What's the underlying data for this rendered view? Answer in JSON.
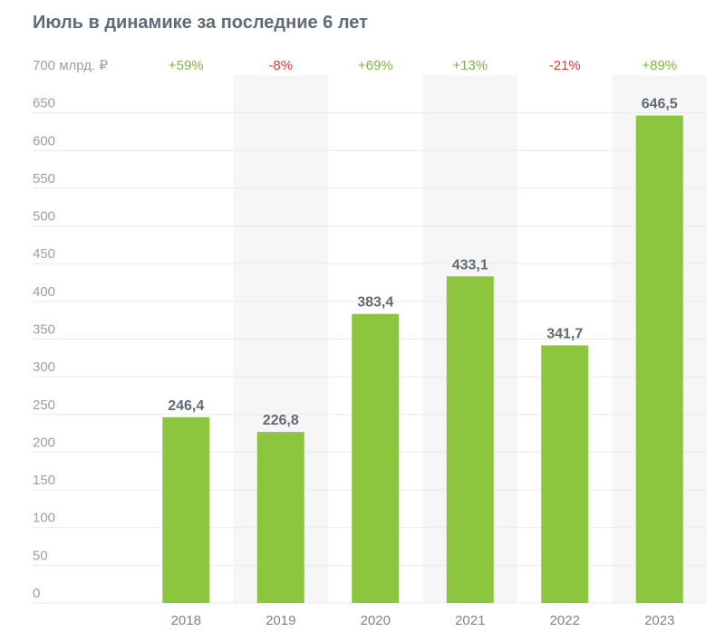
{
  "chart_data": {
    "type": "bar",
    "title": "Июль в динамике за последние 6 лет",
    "unit_label": "700 млрд. ₽",
    "categories": [
      "2018",
      "2019",
      "2020",
      "2021",
      "2022",
      "2023"
    ],
    "values": [
      246.4,
      226.8,
      383.4,
      433.1,
      341.7,
      646.5
    ],
    "value_labels": [
      "246,4",
      "226,8",
      "383,4",
      "433,1",
      "341,7",
      "646,5"
    ],
    "changes": [
      "+59%",
      "-8%",
      "+69%",
      "+13%",
      "-21%",
      "+89%"
    ],
    "yticks": [
      "0",
      "50",
      "100",
      "150",
      "200",
      "250",
      "300",
      "350",
      "400",
      "450",
      "500",
      "550",
      "600",
      "650"
    ],
    "ylim": [
      0,
      700
    ],
    "grid": true,
    "colors": {
      "bar": "#8cc63f",
      "positive": "#7cb342",
      "negative": "#e53935",
      "band": "#f6f6f7"
    }
  }
}
